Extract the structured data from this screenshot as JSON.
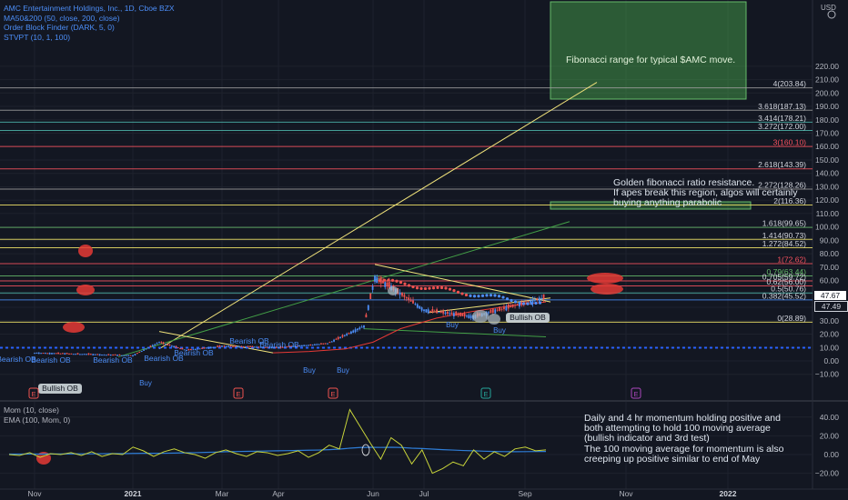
{
  "legend": {
    "title": "AMC Entertainment Holdings, Inc., 1D, Cboe BZX",
    "ma": "MA50&200 (50, close, 200, close)",
    "ob": "Order Block Finder (DARK, 5, 0)",
    "stvpt": "STVPT (10, 1, 100)"
  },
  "momentum_legend": {
    "mom": "Mom (10, close)",
    "ema": "EMA (100, Mom, 0)"
  },
  "currency": "USD",
  "annotations": {
    "fib_range": "Fibonacci range for typical $AMC move.",
    "golden_1": "Golden fibonacci ratio resistance.",
    "golden_2": "If apes break this region, algos will certainly",
    "golden_3": "buying anything parabolic",
    "mom_1": "Daily and 4 hr momentum holding positive and",
    "mom_2": "both attempting to hold 100 moving average",
    "mom_3": "(bullish indicator and 3rd test)",
    "mom_4": "The 100 moving average for momentum is also",
    "mom_5": "creeping up positive similar to end of May"
  },
  "price_labels": {
    "last": "47.67",
    "countdown": "47.49"
  },
  "colors": {
    "bg": "#131722",
    "grid": "#1e222d",
    "bull": "#4c8df6",
    "bear": "#ef5350",
    "ma_yellow": "#f0e68c",
    "fib_green": "#4caf50",
    "fib_red": "#f7525f",
    "fib_yellow": "#f5e76a",
    "mom_line": "#c8d43a",
    "ema_line": "#2e7dd7"
  },
  "chart_data": [
    {
      "type": "candlestick",
      "title": "AMC Entertainment Holdings, Inc., 1D, Cboe BZX",
      "ylabel": "USD",
      "ylim": [
        -12,
        232
      ],
      "y_ticks": [
        "220.00",
        "210.00",
        "200.00",
        "190.00",
        "180.00",
        "170.00",
        "160.00",
        "150.00",
        "140.00",
        "130.00",
        "120.00",
        "110.00",
        "100.00",
        "90.00",
        "80.00",
        "70.00",
        "60.00",
        "50.00",
        "40.00",
        "30.00",
        "20.00",
        "10.00",
        "0.00",
        "−10.00"
      ],
      "x_ticks": [
        "Nov",
        "2021",
        "Mar",
        "Apr",
        "Jun",
        "Jul",
        "Sep",
        "Nov",
        "2022"
      ],
      "fib_levels": [
        {
          "label": "4(203.84)",
          "value": 203.84
        },
        {
          "label": "3.618(187.13)",
          "value": 187.13
        },
        {
          "label": "3.414(178.21)",
          "value": 178.21
        },
        {
          "label": "3.272(172.00)",
          "value": 172.0
        },
        {
          "label": "3(160.10)",
          "value": 160.1
        },
        {
          "label": "2.618(143.39)",
          "value": 143.39
        },
        {
          "label": "2.272(128.26)",
          "value": 128.26
        },
        {
          "label": "2(116.36)",
          "value": 116.36
        },
        {
          "label": "1.618(99.65)",
          "value": 99.65
        },
        {
          "label": "1.414(90.73)",
          "value": 90.73
        },
        {
          "label": "1.272(84.52)",
          "value": 84.52
        },
        {
          "label": "1(72.62)",
          "value": 72.62
        },
        {
          "label": "0.79(63.44)",
          "value": 63.44
        },
        {
          "label": "0.705(59.72)",
          "value": 59.72
        },
        {
          "label": "0.62(56.00)",
          "value": 56.0
        },
        {
          "label": "0.5(50.76)",
          "value": 50.76
        },
        {
          "label": "0.382(45.52)",
          "value": 45.52
        },
        {
          "label": "0(28.89)",
          "value": 28.89
        }
      ],
      "close_path": [
        {
          "x": "Nov",
          "y": 6
        },
        {
          "x": "Dec",
          "y": 5
        },
        {
          "x": "2021",
          "y": 4
        },
        {
          "x": "Jan-late",
          "y": 14
        },
        {
          "x": "Feb",
          "y": 8
        },
        {
          "x": "Mar",
          "y": 11
        },
        {
          "x": "Apr",
          "y": 10
        },
        {
          "x": "May",
          "y": 13
        },
        {
          "x": "late May",
          "y": 26
        },
        {
          "x": "Jun 2",
          "y": 62
        },
        {
          "x": "Jun",
          "y": 55
        },
        {
          "x": "Jul",
          "y": 38
        },
        {
          "x": "Aug",
          "y": 33
        },
        {
          "x": "Sep",
          "y": 47.67
        }
      ],
      "order_blocks": [
        {
          "label": "Bearish OB"
        },
        {
          "label": "Bearish OB"
        },
        {
          "label": "Bearish OB"
        },
        {
          "label": "Bearish OB"
        },
        {
          "label": "Bearish OB"
        },
        {
          "label": "Bearish OB"
        },
        {
          "label": "Bearish OB"
        },
        {
          "label": "Bullish OB"
        },
        {
          "label": "Bullish OB"
        }
      ],
      "signals": [
        "Buy",
        "Buy",
        "Buy",
        "Buy",
        "Buy",
        "Sell"
      ],
      "event_markers": [
        "E",
        "E",
        "E",
        "E",
        "E"
      ],
      "ob_label_bearish": "Bearish OB",
      "ob_label_bullish": "Bullish OB",
      "buy_label": "Buy",
      "sell_label": "Sell"
    },
    {
      "type": "line",
      "title": "Mom (10, close)",
      "ylim": [
        -30,
        55
      ],
      "y_ticks": [
        "40.00",
        "20.00",
        "0.00",
        "−20.00"
      ],
      "series": [
        {
          "name": "Mom (10, close)",
          "values": [
            0,
            -1,
            2,
            -3,
            1,
            0,
            2,
            -1,
            3,
            -2,
            1,
            0,
            8,
            4,
            -2,
            3,
            6,
            2,
            0,
            -4,
            2,
            5,
            1,
            -2,
            3,
            2,
            -1,
            1,
            4,
            -3,
            2,
            10,
            6,
            48,
            30,
            12,
            -5,
            18,
            10,
            -10,
            5,
            -20,
            -15,
            -8,
            -12,
            5,
            -5,
            3,
            -2,
            6,
            8,
            4,
            5
          ]
        },
        {
          "name": "EMA (100, Mom, 0)",
          "values": [
            0.5,
            0.5,
            0.6,
            0.5,
            0.6,
            0.6,
            0.7,
            0.8,
            0.8,
            0.9,
            1,
            1,
            1.2,
            1.3,
            1.3,
            1.4,
            1.6,
            1.8,
            2,
            2.3,
            2.6,
            3,
            3.2,
            3.4,
            3.6,
            3.8,
            4,
            4.2,
            4.4,
            4.6,
            4.8,
            5.2,
            5.8,
            6.8,
            7.5,
            7.8,
            7.6,
            7.8,
            7.5,
            6.8,
            6.4,
            5.8,
            5.2,
            4.8,
            4.3,
            4,
            3.6,
            3.3,
            3.1,
            3,
            3.1,
            3.2,
            3.3
          ]
        }
      ]
    }
  ]
}
